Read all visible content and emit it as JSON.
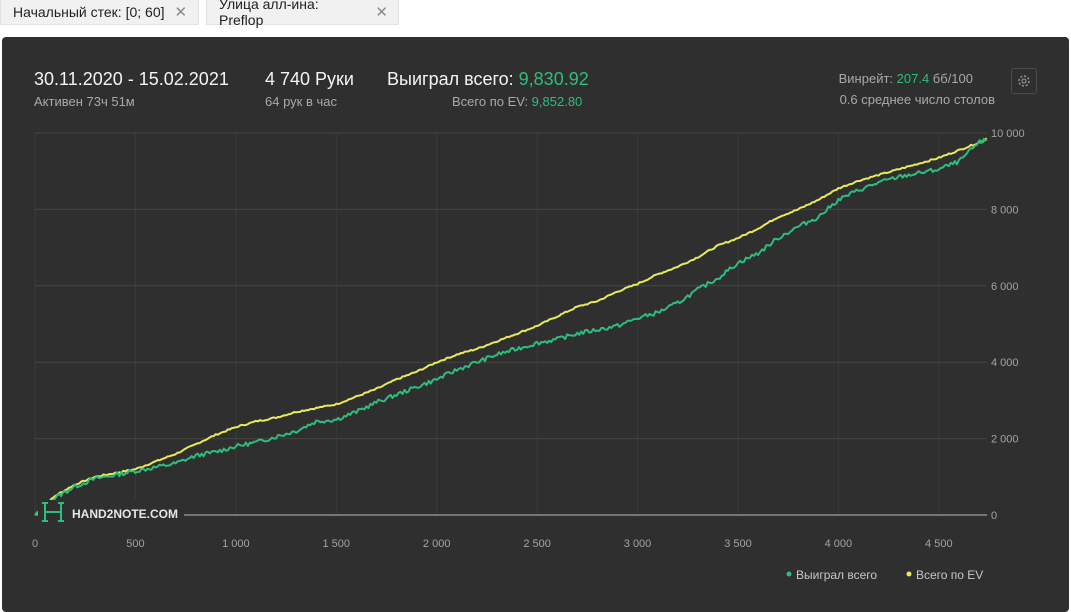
{
  "filters": [
    {
      "label": "Начальный стек: [0; 60]",
      "close": "✕"
    },
    {
      "label": "Улица алл-ина: Preflop",
      "close": "✕"
    }
  ],
  "summary": {
    "date_range": "30.11.2020 - 15.02.2021",
    "active": "Активен 73ч 51м",
    "hands": "4 740 Руки",
    "hands_per_hour": "64 рук в час",
    "won_label": "Выиграл всего: ",
    "won_value": "9,830.92",
    "ev_label": "Всего по EV: ",
    "ev_value": "9,852.80",
    "winrate_label": "Винрейт: ",
    "winrate_value": "207.4",
    "winrate_unit": " бб/100",
    "avg_tables": "0.6 среднее число столов",
    "settings_icon": "gear-icon"
  },
  "watermark": {
    "text": "HAND2NOTE.COM"
  },
  "colors": {
    "won": "#2ebd7c",
    "ev": "#e8ea5c",
    "background": "#2f2f2f",
    "grid": "#464646"
  },
  "chart_data": {
    "type": "line",
    "xlim": [
      0,
      4740
    ],
    "ylim": [
      0,
      10000
    ],
    "x_ticks": [
      0,
      500,
      1000,
      1500,
      2000,
      2500,
      3000,
      3500,
      4000,
      4500
    ],
    "x_tick_labels": [
      "0",
      "500",
      "1 000",
      "1 500",
      "2 000",
      "2 500",
      "3 000",
      "3 500",
      "4 000",
      "4 500"
    ],
    "y_ticks": [
      0,
      2000,
      4000,
      6000,
      8000,
      10000
    ],
    "y_tick_labels": [
      "0",
      "2 000",
      "4 000",
      "6 000",
      "8 000",
      "10 000"
    ],
    "y_axis_side": "right",
    "grid": true,
    "legend_position": "bottom-right",
    "x": [
      0,
      100,
      200,
      300,
      400,
      500,
      600,
      700,
      800,
      900,
      1000,
      1100,
      1200,
      1300,
      1400,
      1500,
      1600,
      1700,
      1800,
      1900,
      2000,
      2100,
      2200,
      2300,
      2400,
      2500,
      2600,
      2700,
      2800,
      2900,
      3000,
      3100,
      3200,
      3300,
      3400,
      3500,
      3600,
      3700,
      3800,
      3900,
      4000,
      4100,
      4200,
      4300,
      4400,
      4500,
      4600,
      4700,
      4740
    ],
    "series": [
      {
        "name": "Выиграл всего",
        "color": "#2ebd7c",
        "values": [
          0,
          450,
          750,
          950,
          1050,
          1150,
          1250,
          1350,
          1550,
          1650,
          1800,
          1900,
          2050,
          2200,
          2450,
          2500,
          2700,
          2950,
          3150,
          3350,
          3550,
          3800,
          4000,
          4200,
          4350,
          4500,
          4600,
          4750,
          4850,
          4950,
          5150,
          5300,
          5550,
          5900,
          6200,
          6600,
          6850,
          7250,
          7550,
          7800,
          8250,
          8500,
          8700,
          8850,
          8950,
          9050,
          9250,
          9750,
          9830
        ]
      },
      {
        "name": "Всего по EV",
        "color": "#e8ea5c",
        "values": [
          0,
          500,
          800,
          1000,
          1100,
          1200,
          1400,
          1600,
          1850,
          2100,
          2300,
          2450,
          2550,
          2700,
          2800,
          2900,
          3100,
          3300,
          3550,
          3750,
          4000,
          4200,
          4350,
          4550,
          4750,
          4950,
          5200,
          5450,
          5600,
          5850,
          6050,
          6300,
          6500,
          6750,
          7050,
          7250,
          7500,
          7800,
          8000,
          8250,
          8550,
          8750,
          8900,
          9050,
          9200,
          9350,
          9550,
          9750,
          9850
        ]
      }
    ]
  }
}
